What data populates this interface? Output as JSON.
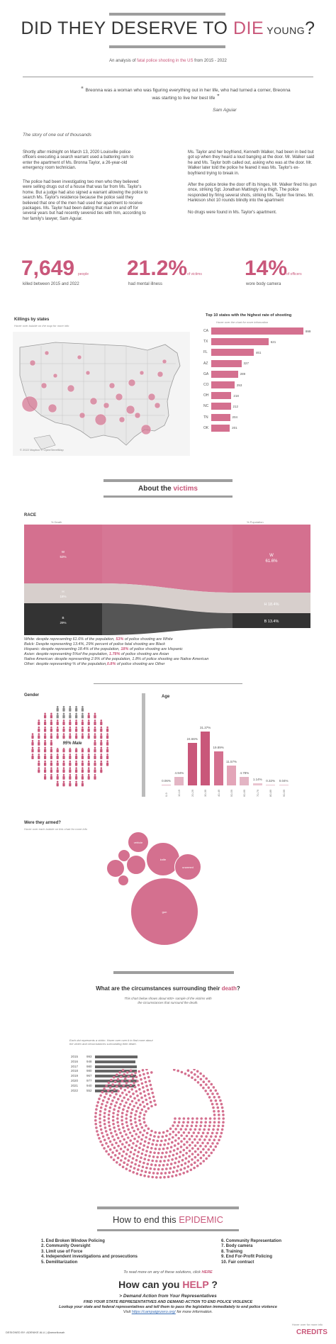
{
  "header": {
    "title_part1": "DID THEY DESERVE TO ",
    "title_highlight": "DIE",
    "title_part2": " YOUNG",
    "title_end": "?",
    "subtitle_part1": "An analysis of ",
    "subtitle_highlight": "fatal police shooting in the US",
    "subtitle_part2": " from 2015 - 2022"
  },
  "quote": {
    "text": "Breonna was a woman who was figuring everything out in her life, who had turned a corner, Breonna was starting to live her best life",
    "author": "Sam Aguiar"
  },
  "story": {
    "heading": "The story of one out of thousands",
    "p1": "Shortly after midnight on March 13, 2020 Louisville police officers executing a search warrant used a battering ram to enter the apartment of Ms. Bronna Taylor, a 26-year-old emergency room technician.",
    "p2": "The police had been investigating two men who they believed were selling drugs out of a house that was far from Ms. Taylor's home. But a judge had also signed a warrant allowing the police to search Ms. Taylor's residence because the police said they believed that one of the men had used her apartment to receive packages. Ms. Taylor had been dating that man on and off for several years but had recently severed ties with him, according to her family's lawyer, Sam Aguiar.",
    "p3": "Ms. Taylor and her boyfriend, Kenneth Walker, had been in bed but got up when they heard a loud banging at the door. Mr. Walker said he and Ms. Taylor both called out, asking who was at the door. Mr. Walker later told the police he feared it was Ms. Taylor's ex-boyfriend trying to break in.",
    "p4": "After the police broke the door off its hinges, Mr. Walker fired his gun once, striking Sgt. Jonathan Mattingly in a thigh. The police responded by firing several shots, striking Ms. Taylor five times. Mr. Hankison shot 10 rounds blindly into the apartment",
    "p5": "No drugs were found in Ms. Taylor's apartment."
  },
  "stats": [
    {
      "value": "7,649",
      "suffix": "people",
      "caption": "killed between 2015 and 2022"
    },
    {
      "value": "21.2%",
      "suffix": "of victims",
      "caption": "had mental illness"
    },
    {
      "value": "14%",
      "suffix": "of officers",
      "caption": "wore body camera"
    }
  ],
  "map": {
    "title": "Killings by states",
    "note": "Hover over bubble on the map for more info",
    "credit": "© 2022 Mapbox © OpenStreetMap"
  },
  "top10": {
    "title": "Top 10 states with the highest  rate of shooting",
    "note": "Hover over the chart for more information",
    "chart_data": {
      "type": "bar",
      "categories": [
        "CA",
        "TX",
        "FL",
        "AZ",
        "GA",
        "CO",
        "OH",
        "NC",
        "TN",
        "OK"
      ],
      "values": [
        999,
        621,
        461,
        327,
        289,
        253,
        218,
        212,
        204,
        201
      ]
    }
  },
  "about": {
    "title_part1": "About the ",
    "title_highlight": "victims"
  },
  "race": {
    "title": "RACE",
    "left_label": "% Death",
    "right_label": "% Population",
    "chart_data": {
      "type": "area",
      "categories": [
        "White",
        "Hispanic",
        "Black"
      ],
      "death": [
        53,
        18,
        29
      ],
      "population": [
        61.6,
        18.4,
        13.4
      ],
      "labels_left": [
        "W\n53%",
        "H\n18%",
        "B\n29%"
      ],
      "labels_right": [
        "W\n61.6%",
        "H  18.4%",
        "B  13.4%"
      ]
    },
    "lines": [
      {
        "text": "White: despite representing 61.6% of the population, ",
        "hl": "53%",
        "end": " of police shooting are  White"
      },
      {
        "text": "Balck:  Despite representing 13.4%, 29% percent of police fatal shooting are Black",
        "hl": "",
        "end": ""
      },
      {
        "text": "Hispanic: despite representing 18.4% of the population, ",
        "hl": "18%",
        "end": " of police shooting are  Hispanic"
      },
      {
        "text": "Asian: despite representing 5%of the population, ",
        "hl": "1.78%",
        "end": " of police shooting are  Asian"
      },
      {
        "text": "Native American: despite representing 2.9% of the population, 1.8% of police shooting are  Native American",
        "hl": "",
        "end": ""
      },
      {
        "text": "Other: despite representing % of the population,",
        "hl": "0.8%",
        "end": " of police shooting are  Other"
      }
    ]
  },
  "gender": {
    "title": "Gender",
    "label": "95% Male"
  },
  "age": {
    "title": "Age",
    "chart_data": {
      "type": "bar",
      "categories": [
        "0-9",
        "10-19",
        "20-29",
        "30-39",
        "40-49",
        "50-59",
        "60-69",
        "70-79",
        "80-89",
        "90-99"
      ],
      "values": [
        0.06,
        4.94,
        24.66,
        31.37,
        19.89,
        11.57,
        4.78,
        1.14,
        0.32,
        0.04
      ],
      "labels": [
        "0.06%",
        "4.94%",
        "24.66%",
        "31.37%",
        "19.89%",
        "11.57%",
        "4.78%",
        "1.14%",
        "0.32%",
        "0.04%"
      ]
    }
  },
  "armed": {
    "title": "Were they armed?",
    "note": "Hover over each bubble on this chart for more info",
    "bubbles": [
      "vehicle",
      "knife",
      "unarmed",
      "gun"
    ]
  },
  "circumstances": {
    "title_part1": "What are the circumstances surrounding their ",
    "title_highlight": "death",
    "title_end": "?",
    "note": "This chart  below shows about 600+ sample of the victims with the circumstances that surround the death.",
    "chart_note": "Each dot represents a victim. Hover over over it to find more about the victim and circumstances surrounding their death.",
    "chart_data": {
      "type": "bar",
      "categories": [
        "2015",
        "2016",
        "2017",
        "2018",
        "2019",
        "2020",
        "2021",
        "2022"
      ],
      "values": [
        993,
        948,
        980,
        980,
        967,
        977,
        940,
        552
      ]
    }
  },
  "end": {
    "title_part1": "How to end this ",
    "title_highlight": "EPIDEMIC",
    "left_list": [
      "1. End Broken Window Policing",
      "2. Community Oversight",
      "3. Limit use of Force",
      "4. Independent investigations and prosecutions",
      "5. Demilitarization"
    ],
    "right_list": [
      "6. Community Representation",
      "7. Body camera",
      "8. Training",
      "9. End For-Profit Policing",
      "10. Fair contract"
    ],
    "read_more": "To read more on any of these solutions, click ",
    "read_more_link": "HERE"
  },
  "help": {
    "title_part1": "How can you ",
    "title_highlight": "HELP",
    "title_end": " ?",
    "action": "Demand Action from Your Representatives",
    "line1": "FIND YOUR STATE REPRESENTATIVES AND DEMAND ACTION TO END POLICE VIOLENCE",
    "line2": "Lookup your state and federal representatives and tell them to pass the legislation immediately to end police violence",
    "line3_prefix": "Visit ",
    "line3_link": "https://campaignzero.org/",
    "line3_suffix": " for more information."
  },
  "footer": {
    "designed": "DESIGNED BY: ADENIKE ALU  |  @amarikosah",
    "hover": "Hover over for more info",
    "credits": "CREDITS"
  }
}
